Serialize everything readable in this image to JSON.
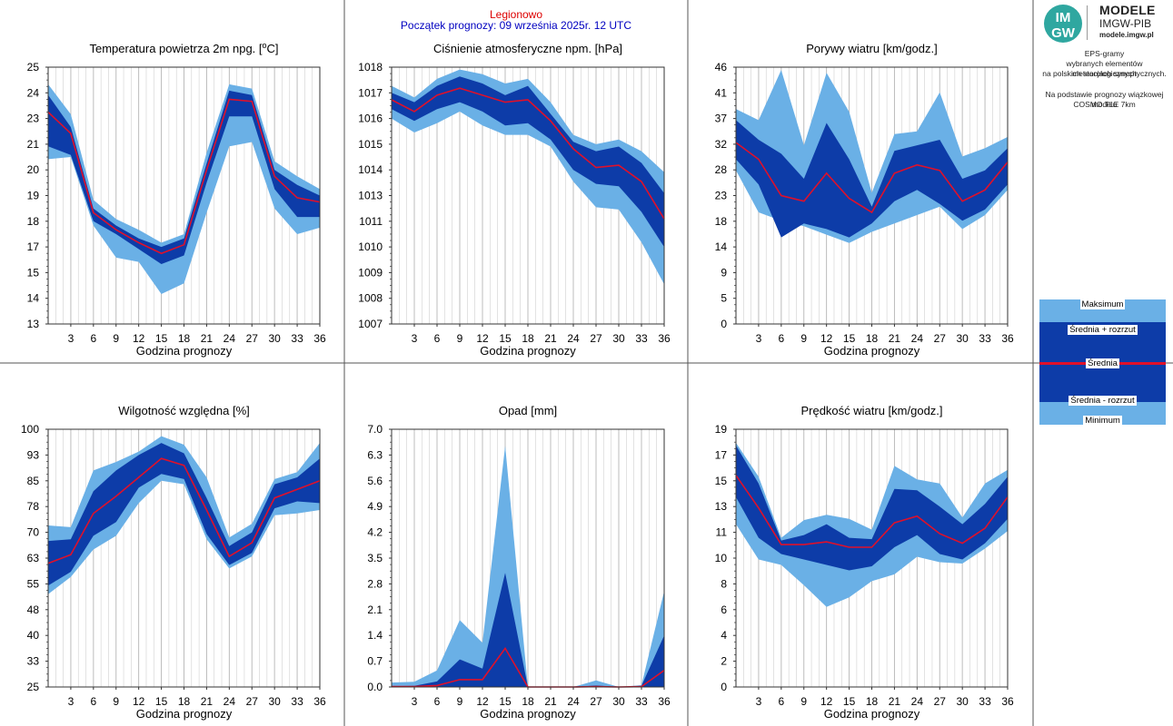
{
  "header": {
    "station": "Legionowo",
    "forecast_start": "Początek prognozy: 09 września 2025r. 12 UTC"
  },
  "brand": {
    "logo_text_top": "IM",
    "logo_text_bottom": "GW",
    "title": "MODELE",
    "subtitle": "IMGW-PIB",
    "url": "modele.imgw.pl",
    "description_1": "EPS-gramy",
    "description_2": "wybranych elementów meteorologicznych",
    "description_3": "na polskich stacjach  synoptycznych.",
    "description_4": "Na podstawie prognozy wiązkowej modelu",
    "description_5": "COSMO TLE 7km"
  },
  "legend": {
    "max_label": "Maksimum",
    "upper_label": "Średnia + rozrzut",
    "mean_label": "Średnia",
    "lower_label": "Średnia - rozrzut",
    "min_label": "Minimum"
  },
  "colors": {
    "light_band": "#6ab0e6",
    "dark_band": "#0d3ca8",
    "mean_line": "#e0102a",
    "grid": "#d0d0d0",
    "frame": "#333333"
  },
  "chart_data": [
    {
      "type": "area",
      "title": "Temperatura powietrza 2m npg. [°C]",
      "title_main": "Temperatura powietrza 2m npg. [",
      "title_sup": "o",
      "title_end": "C]",
      "xlabel": "Godzina prognozy",
      "x": [
        0,
        3,
        6,
        9,
        12,
        15,
        18,
        21,
        24,
        27,
        30,
        33,
        36
      ],
      "xlim": [
        0,
        36
      ],
      "xticks": [
        "3",
        "6",
        "9",
        "12",
        "15",
        "18",
        "21",
        "24",
        "27",
        "30",
        "33",
        "36"
      ],
      "ylim": [
        13,
        25
      ],
      "yticks": [
        "13",
        "14",
        "15",
        "17",
        "18",
        "19",
        "20",
        "21",
        "23",
        "24",
        "25"
      ],
      "max": [
        24.2,
        22.8,
        18.8,
        17.9,
        17.4,
        16.8,
        17.2,
        21.0,
        24.2,
        24.0,
        20.6,
        19.9,
        19.3
      ],
      "upper": [
        23.7,
        22.2,
        18.4,
        17.6,
        17.0,
        16.6,
        17.0,
        20.5,
        23.9,
        23.7,
        20.2,
        19.5,
        19.0
      ],
      "mean": [
        22.9,
        21.9,
        18.2,
        17.4,
        16.8,
        16.3,
        16.7,
        20.2,
        23.5,
        23.4,
        19.9,
        18.9,
        18.7
      ],
      "lower": [
        21.3,
        20.9,
        17.8,
        17.2,
        16.5,
        15.8,
        16.2,
        19.6,
        22.7,
        22.7,
        19.3,
        18.0,
        18.0
      ],
      "min": [
        20.7,
        20.8,
        17.6,
        16.1,
        15.9,
        14.4,
        14.9,
        18.2,
        21.3,
        21.5,
        18.4,
        17.2,
        17.5
      ]
    },
    {
      "type": "area",
      "title": "Ciśnienie atmosferyczne npm. [hPa]",
      "xlabel": "Godzina prognozy",
      "x": [
        0,
        3,
        6,
        9,
        12,
        15,
        18,
        21,
        24,
        27,
        30,
        33,
        36
      ],
      "xlim": [
        0,
        36
      ],
      "xticks": [
        "3",
        "6",
        "9",
        "12",
        "15",
        "18",
        "21",
        "24",
        "27",
        "30",
        "33",
        "36"
      ],
      "ylim": [
        1007,
        1018
      ],
      "yticks": [
        "1007",
        "1008",
        "1009",
        "1010",
        "1011",
        "1013",
        "1014",
        "1015",
        "1016",
        "1017",
        "1018"
      ],
      "max": [
        1017.2,
        1016.7,
        1017.5,
        1017.9,
        1017.7,
        1017.3,
        1017.5,
        1016.5,
        1015.1,
        1014.7,
        1014.9,
        1014.4,
        1013.5
      ],
      "upper": [
        1016.9,
        1016.5,
        1017.2,
        1017.6,
        1017.3,
        1016.8,
        1017.2,
        1016.0,
        1014.8,
        1014.4,
        1014.6,
        1013.9,
        1012.6
      ],
      "mean": [
        1016.6,
        1016.1,
        1016.8,
        1017.1,
        1016.8,
        1016.5,
        1016.6,
        1015.7,
        1014.5,
        1013.7,
        1013.8,
        1013.1,
        1011.5
      ],
      "lower": [
        1016.2,
        1015.7,
        1016.2,
        1016.5,
        1016.1,
        1015.5,
        1015.6,
        1014.9,
        1013.6,
        1013.0,
        1012.9,
        1011.8,
        1010.3
      ],
      "min": [
        1015.8,
        1015.2,
        1015.6,
        1016.1,
        1015.5,
        1015.1,
        1015.1,
        1014.6,
        1013.1,
        1012.0,
        1011.9,
        1010.5,
        1008.7
      ]
    },
    {
      "type": "area",
      "title": "Porywy wiatru [km/godz.]",
      "xlabel": "Godzina prognozy",
      "x": [
        0,
        3,
        6,
        9,
        12,
        15,
        18,
        21,
        24,
        27,
        30,
        33,
        36
      ],
      "xlim": [
        0,
        36
      ],
      "xticks": [
        "3",
        "6",
        "9",
        "12",
        "15",
        "18",
        "21",
        "24",
        "27",
        "30",
        "33",
        "36"
      ],
      "ylim": [
        0,
        46
      ],
      "yticks": [
        "0",
        "5",
        "9",
        "14",
        "18",
        "23",
        "28",
        "32",
        "37",
        "41",
        "46"
      ],
      "max": [
        38.5,
        36.5,
        45.5,
        32.0,
        45.0,
        38.0,
        23.5,
        34.0,
        34.5,
        41.5,
        30.0,
        31.5,
        33.5
      ],
      "upper": [
        36.5,
        33.0,
        30.5,
        26.0,
        36.0,
        29.5,
        21.0,
        31.0,
        32.0,
        33.0,
        26.0,
        27.5,
        31.5
      ],
      "mean": [
        32.5,
        29.5,
        23.0,
        22.0,
        27.0,
        22.5,
        20.0,
        27.0,
        28.5,
        27.5,
        22.0,
        24.0,
        29.0
      ],
      "lower": [
        29.5,
        25.0,
        15.5,
        18.0,
        17.0,
        15.5,
        18.0,
        22.0,
        24.0,
        21.5,
        18.5,
        20.5,
        25.0
      ],
      "min": [
        27.5,
        20.0,
        18.5,
        17.5,
        16.0,
        14.5,
        16.5,
        18.0,
        19.5,
        21.0,
        17.0,
        19.5,
        24.0
      ]
    },
    {
      "type": "area",
      "title": "Wilgotność względna [%]",
      "xlabel": "Godzina prognozy",
      "x": [
        0,
        3,
        6,
        9,
        12,
        15,
        18,
        21,
        24,
        27,
        30,
        33,
        36
      ],
      "xlim": [
        0,
        36
      ],
      "xticks": [
        "3",
        "6",
        "9",
        "12",
        "15",
        "18",
        "21",
        "24",
        "27",
        "30",
        "33",
        "36"
      ],
      "ylim": [
        25,
        100
      ],
      "yticks": [
        "25",
        "33",
        "40",
        "48",
        "55",
        "63",
        "70",
        "78",
        "85",
        "93",
        "100"
      ],
      "max": [
        72.0,
        71.5,
        88.0,
        90.5,
        93.5,
        98.0,
        95.5,
        86.0,
        68.5,
        72.5,
        85.5,
        87.5,
        96.0
      ],
      "upper": [
        67.5,
        68.0,
        82.0,
        88.0,
        92.5,
        96.0,
        93.0,
        80.0,
        66.0,
        70.0,
        84.0,
        86.0,
        91.5
      ],
      "mean": [
        61.0,
        63.5,
        75.5,
        80.5,
        86.0,
        91.5,
        89.5,
        76.5,
        63.0,
        67.0,
        80.0,
        82.5,
        85.0
      ],
      "lower": [
        54.5,
        58.5,
        69.0,
        73.0,
        83.0,
        87.0,
        85.5,
        69.5,
        60.5,
        64.0,
        77.0,
        79.0,
        78.5
      ],
      "min": [
        52.0,
        57.0,
        65.0,
        69.0,
        78.5,
        85.0,
        84.0,
        68.0,
        59.5,
        63.0,
        75.0,
        75.5,
        76.5
      ]
    },
    {
      "type": "area",
      "title": "Opad [mm]",
      "xlabel": "Godzina prognozy",
      "x": [
        0,
        3,
        6,
        9,
        12,
        15,
        18,
        21,
        24,
        27,
        30,
        33,
        36
      ],
      "xlim": [
        0,
        36
      ],
      "xticks": [
        "3",
        "6",
        "9",
        "12",
        "15",
        "18",
        "21",
        "24",
        "27",
        "30",
        "33",
        "36"
      ],
      "ylim": [
        0,
        7
      ],
      "yticks": [
        "0.0",
        "0.7",
        "1.4",
        "2.1",
        "2.8",
        "3.5",
        "4.2",
        "4.9",
        "5.6",
        "6.3",
        "7.0"
      ],
      "max": [
        0.12,
        0.14,
        0.45,
        1.82,
        1.2,
        6.55,
        0.0,
        0.0,
        0.0,
        0.18,
        0.0,
        0.05,
        2.6
      ],
      "upper": [
        0.02,
        0.03,
        0.15,
        0.75,
        0.5,
        3.1,
        0.0,
        0.0,
        0.0,
        0.04,
        0.0,
        0.03,
        1.4
      ],
      "mean": [
        0.01,
        0.01,
        0.04,
        0.2,
        0.2,
        1.05,
        0.0,
        0.0,
        0.0,
        0.01,
        0.0,
        0.01,
        0.45
      ],
      "lower": [
        0.0,
        0.0,
        0.0,
        0.0,
        0.0,
        0.0,
        0.0,
        0.0,
        0.0,
        0.0,
        0.0,
        0.0,
        0.0
      ],
      "min": [
        0.0,
        0.0,
        0.0,
        0.0,
        0.0,
        0.0,
        0.0,
        0.0,
        0.0,
        0.0,
        0.0,
        0.0,
        0.0
      ]
    },
    {
      "type": "area",
      "title": "Prędkość wiatru [km/godz.]",
      "xlabel": "Godzina prognozy",
      "x": [
        0,
        3,
        6,
        9,
        12,
        15,
        18,
        21,
        24,
        27,
        30,
        33,
        36
      ],
      "xlim": [
        0,
        36
      ],
      "xticks": [
        "3",
        "6",
        "9",
        "12",
        "15",
        "18",
        "21",
        "24",
        "27",
        "30",
        "33",
        "36"
      ],
      "ylim": [
        0,
        19
      ],
      "yticks": [
        "0",
        "2",
        "4",
        "6",
        "8",
        "10",
        "11",
        "13",
        "15",
        "17",
        "19"
      ],
      "max": [
        18.0,
        15.5,
        11.0,
        12.3,
        12.7,
        12.4,
        11.6,
        16.3,
        15.3,
        15.0,
        12.5,
        15.0,
        16.0
      ],
      "upper": [
        17.8,
        15.0,
        10.8,
        11.2,
        12.0,
        11.0,
        10.9,
        14.6,
        14.5,
        13.3,
        12.0,
        13.5,
        15.5
      ],
      "mean": [
        15.6,
        13.2,
        10.5,
        10.5,
        10.7,
        10.3,
        10.3,
        12.1,
        12.6,
        11.3,
        10.6,
        11.7,
        14.0
      ],
      "lower": [
        14.0,
        11.0,
        9.8,
        9.4,
        9.0,
        8.6,
        8.9,
        10.3,
        11.2,
        9.8,
        9.4,
        10.6,
        12.4
      ],
      "min": [
        12.0,
        9.4,
        9.0,
        7.5,
        5.9,
        6.6,
        7.8,
        8.3,
        9.6,
        9.2,
        9.1,
        10.2,
        11.5
      ]
    }
  ]
}
